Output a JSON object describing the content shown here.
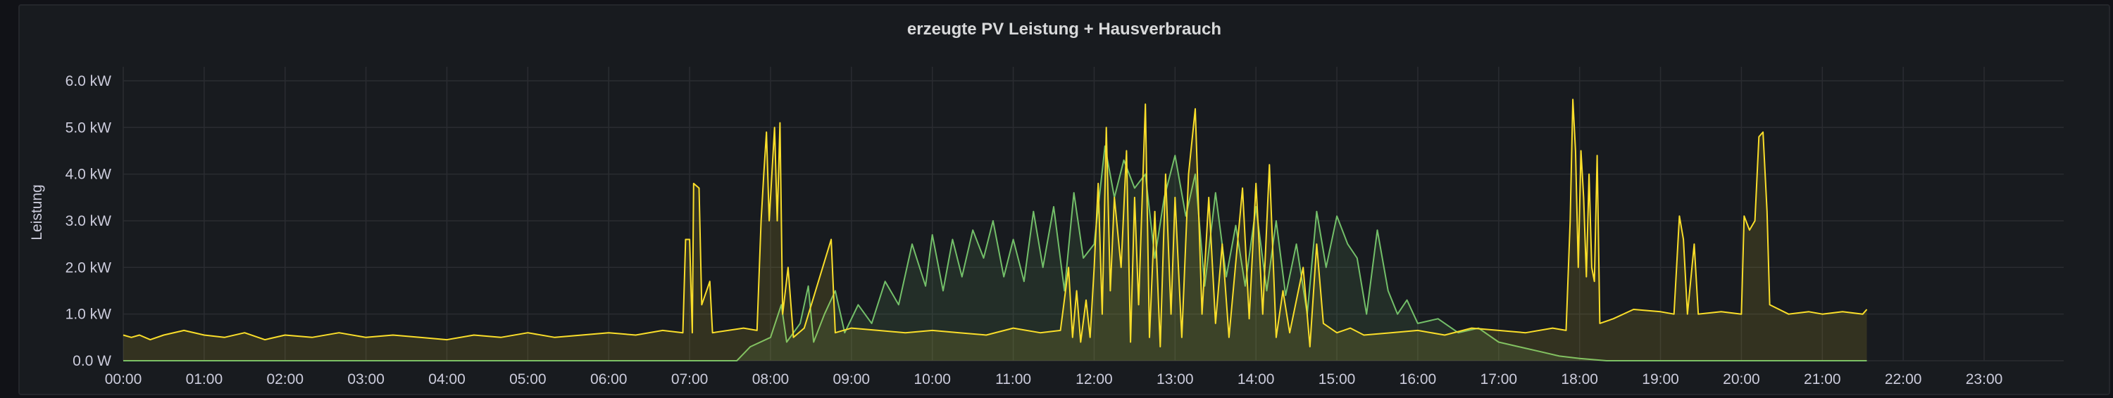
{
  "panel": {
    "title": "erzeugte PV Leistung + Hausverbrauch"
  },
  "chart_data": {
    "type": "area",
    "title": "erzeugte PV Leistung + Hausverbrauch",
    "xlabel": "",
    "ylabel": "Leistung",
    "ylim": [
      0,
      6.3
    ],
    "xlim": [
      "00:00",
      "23:59"
    ],
    "y_ticks": [
      "0.0 W",
      "1.0 kW",
      "2.0 kW",
      "3.0 kW",
      "4.0 kW",
      "5.0 kW",
      "6.0 kW"
    ],
    "x_ticks": [
      "00:00",
      "01:00",
      "02:00",
      "03:00",
      "04:00",
      "05:00",
      "06:00",
      "07:00",
      "08:00",
      "09:00",
      "10:00",
      "11:00",
      "12:00",
      "13:00",
      "14:00",
      "15:00",
      "16:00",
      "17:00",
      "18:00",
      "19:00",
      "20:00",
      "21:00",
      "22:00",
      "23:00"
    ],
    "grid": true,
    "legend": "none",
    "unit": "kW",
    "series": [
      {
        "color": "#fade2a",
        "fill": "rgba(250,222,42,0.12)",
        "points": [
          [
            "00:00",
            0.55
          ],
          [
            "00:06",
            0.5
          ],
          [
            "00:12",
            0.55
          ],
          [
            "00:20",
            0.45
          ],
          [
            "00:30",
            0.55
          ],
          [
            "00:45",
            0.65
          ],
          [
            "01:00",
            0.55
          ],
          [
            "01:15",
            0.5
          ],
          [
            "01:30",
            0.6
          ],
          [
            "01:45",
            0.45
          ],
          [
            "02:00",
            0.55
          ],
          [
            "02:20",
            0.5
          ],
          [
            "02:40",
            0.6
          ],
          [
            "03:00",
            0.5
          ],
          [
            "03:20",
            0.55
          ],
          [
            "03:40",
            0.5
          ],
          [
            "04:00",
            0.45
          ],
          [
            "04:20",
            0.55
          ],
          [
            "04:40",
            0.5
          ],
          [
            "05:00",
            0.6
          ],
          [
            "05:20",
            0.5
          ],
          [
            "05:40",
            0.55
          ],
          [
            "06:00",
            0.6
          ],
          [
            "06:20",
            0.55
          ],
          [
            "06:40",
            0.65
          ],
          [
            "06:55",
            0.6
          ],
          [
            "06:57",
            2.6
          ],
          [
            "07:00",
            2.6
          ],
          [
            "07:02",
            0.6
          ],
          [
            "07:03",
            3.8
          ],
          [
            "07:07",
            3.7
          ],
          [
            "07:09",
            1.2
          ],
          [
            "07:15",
            1.7
          ],
          [
            "07:17",
            0.6
          ],
          [
            "07:40",
            0.7
          ],
          [
            "07:50",
            0.65
          ],
          [
            "07:53",
            3.0
          ],
          [
            "07:55",
            4.0
          ],
          [
            "07:57",
            4.9
          ],
          [
            "07:59",
            3.0
          ],
          [
            "08:03",
            5.0
          ],
          [
            "08:05",
            3.0
          ],
          [
            "08:07",
            5.1
          ],
          [
            "08:09",
            1.0
          ],
          [
            "08:13",
            2.0
          ],
          [
            "08:17",
            0.5
          ],
          [
            "08:25",
            0.7
          ],
          [
            "08:45",
            2.6
          ],
          [
            "08:48",
            0.6
          ],
          [
            "09:00",
            0.7
          ],
          [
            "09:20",
            0.65
          ],
          [
            "09:40",
            0.6
          ],
          [
            "10:00",
            0.65
          ],
          [
            "10:20",
            0.6
          ],
          [
            "10:40",
            0.55
          ],
          [
            "11:00",
            0.7
          ],
          [
            "11:20",
            0.6
          ],
          [
            "11:35",
            0.65
          ],
          [
            "11:41",
            2.0
          ],
          [
            "11:44",
            0.5
          ],
          [
            "11:47",
            1.5
          ],
          [
            "11:50",
            0.4
          ],
          [
            "11:54",
            1.3
          ],
          [
            "11:57",
            0.5
          ],
          [
            "12:00",
            2.0
          ],
          [
            "12:03",
            3.8
          ],
          [
            "12:06",
            1.0
          ],
          [
            "12:09",
            5.0
          ],
          [
            "12:12",
            1.5
          ],
          [
            "12:15",
            3.5
          ],
          [
            "12:20",
            2.0
          ],
          [
            "12:24",
            4.5
          ],
          [
            "12:27",
            0.4
          ],
          [
            "12:30",
            3.5
          ],
          [
            "12:33",
            1.2
          ],
          [
            "12:38",
            5.5
          ],
          [
            "12:41",
            0.5
          ],
          [
            "12:45",
            3.2
          ],
          [
            "12:49",
            0.3
          ],
          [
            "12:53",
            4.0
          ],
          [
            "12:57",
            1.0
          ],
          [
            "13:00",
            3.5
          ],
          [
            "13:05",
            0.5
          ],
          [
            "13:10",
            4.0
          ],
          [
            "13:15",
            5.4
          ],
          [
            "13:20",
            1.0
          ],
          [
            "13:25",
            3.5
          ],
          [
            "13:30",
            0.8
          ],
          [
            "13:35",
            2.5
          ],
          [
            "13:40",
            0.5
          ],
          [
            "13:50",
            3.7
          ],
          [
            "13:55",
            0.9
          ],
          [
            "14:00",
            3.8
          ],
          [
            "14:05",
            1.0
          ],
          [
            "14:10",
            4.2
          ],
          [
            "14:15",
            0.5
          ],
          [
            "14:20",
            1.5
          ],
          [
            "14:25",
            0.6
          ],
          [
            "14:35",
            2.0
          ],
          [
            "14:40",
            0.3
          ],
          [
            "14:45",
            2.5
          ],
          [
            "14:50",
            0.8
          ],
          [
            "15:00",
            0.6
          ],
          [
            "15:10",
            0.7
          ],
          [
            "15:20",
            0.55
          ],
          [
            "15:40",
            0.6
          ],
          [
            "16:00",
            0.65
          ],
          [
            "16:20",
            0.55
          ],
          [
            "16:40",
            0.7
          ],
          [
            "17:00",
            0.65
          ],
          [
            "17:20",
            0.6
          ],
          [
            "17:40",
            0.7
          ],
          [
            "17:50",
            0.65
          ],
          [
            "17:53",
            3.0
          ],
          [
            "17:55",
            5.6
          ],
          [
            "17:57",
            4.5
          ],
          [
            "17:59",
            2.0
          ],
          [
            "18:01",
            4.5
          ],
          [
            "18:03",
            3.5
          ],
          [
            "18:05",
            1.8
          ],
          [
            "18:07",
            4.0
          ],
          [
            "18:09",
            2.0
          ],
          [
            "18:11",
            1.7
          ],
          [
            "18:13",
            4.4
          ],
          [
            "18:15",
            0.8
          ],
          [
            "18:25",
            0.9
          ],
          [
            "18:40",
            1.1
          ],
          [
            "19:00",
            1.05
          ],
          [
            "19:10",
            1.0
          ],
          [
            "19:14",
            3.1
          ],
          [
            "19:17",
            2.6
          ],
          [
            "19:20",
            1.0
          ],
          [
            "19:25",
            2.5
          ],
          [
            "19:28",
            1.0
          ],
          [
            "19:45",
            1.05
          ],
          [
            "20:00",
            1.0
          ],
          [
            "20:02",
            3.1
          ],
          [
            "20:06",
            2.8
          ],
          [
            "20:10",
            3.0
          ],
          [
            "20:13",
            4.8
          ],
          [
            "20:16",
            4.9
          ],
          [
            "20:19",
            3.2
          ],
          [
            "20:21",
            1.2
          ],
          [
            "20:35",
            1.0
          ],
          [
            "20:50",
            1.05
          ],
          [
            "21:00",
            1.0
          ],
          [
            "21:15",
            1.05
          ],
          [
            "21:30",
            1.0
          ],
          [
            "21:33",
            1.1
          ]
        ]
      },
      {
        "color": "#73bf69",
        "fill": "rgba(115,191,105,0.12)",
        "points": [
          [
            "00:00",
            0.0
          ],
          [
            "07:35",
            0.0
          ],
          [
            "07:45",
            0.3
          ],
          [
            "08:00",
            0.5
          ],
          [
            "08:08",
            1.2
          ],
          [
            "08:12",
            0.4
          ],
          [
            "08:22",
            0.8
          ],
          [
            "08:28",
            1.6
          ],
          [
            "08:32",
            0.4
          ],
          [
            "08:40",
            1.0
          ],
          [
            "08:48",
            1.5
          ],
          [
            "08:55",
            0.6
          ],
          [
            "09:05",
            1.2
          ],
          [
            "09:15",
            0.8
          ],
          [
            "09:25",
            1.7
          ],
          [
            "09:35",
            1.2
          ],
          [
            "09:45",
            2.5
          ],
          [
            "09:55",
            1.6
          ],
          [
            "10:00",
            2.7
          ],
          [
            "10:08",
            1.5
          ],
          [
            "10:15",
            2.6
          ],
          [
            "10:22",
            1.8
          ],
          [
            "10:30",
            2.8
          ],
          [
            "10:38",
            2.2
          ],
          [
            "10:45",
            3.0
          ],
          [
            "10:53",
            1.8
          ],
          [
            "11:00",
            2.6
          ],
          [
            "11:08",
            1.7
          ],
          [
            "11:15",
            3.2
          ],
          [
            "11:22",
            2.0
          ],
          [
            "11:30",
            3.3
          ],
          [
            "11:38",
            1.5
          ],
          [
            "11:45",
            3.6
          ],
          [
            "11:52",
            2.2
          ],
          [
            "12:00",
            2.5
          ],
          [
            "12:08",
            4.6
          ],
          [
            "12:15",
            3.5
          ],
          [
            "12:22",
            4.3
          ],
          [
            "12:30",
            3.7
          ],
          [
            "12:38",
            4.0
          ],
          [
            "12:45",
            2.2
          ],
          [
            "12:52",
            3.5
          ],
          [
            "13:00",
            4.4
          ],
          [
            "13:08",
            3.1
          ],
          [
            "13:15",
            4.0
          ],
          [
            "13:22",
            1.6
          ],
          [
            "13:30",
            3.6
          ],
          [
            "13:38",
            1.8
          ],
          [
            "13:45",
            2.9
          ],
          [
            "13:52",
            1.6
          ],
          [
            "14:00",
            3.3
          ],
          [
            "14:08",
            1.5
          ],
          [
            "14:15",
            3.0
          ],
          [
            "14:22",
            1.4
          ],
          [
            "14:30",
            2.5
          ],
          [
            "14:38",
            1.0
          ],
          [
            "14:45",
            3.2
          ],
          [
            "14:52",
            2.0
          ],
          [
            "15:00",
            3.1
          ],
          [
            "15:08",
            2.5
          ],
          [
            "15:15",
            2.2
          ],
          [
            "15:22",
            1.0
          ],
          [
            "15:30",
            2.8
          ],
          [
            "15:38",
            1.5
          ],
          [
            "15:45",
            1.0
          ],
          [
            "15:52",
            1.3
          ],
          [
            "16:00",
            0.8
          ],
          [
            "16:15",
            0.9
          ],
          [
            "16:30",
            0.6
          ],
          [
            "16:45",
            0.7
          ],
          [
            "17:00",
            0.4
          ],
          [
            "17:15",
            0.3
          ],
          [
            "17:30",
            0.2
          ],
          [
            "17:45",
            0.1
          ],
          [
            "18:00",
            0.05
          ],
          [
            "18:20",
            0.0
          ],
          [
            "21:33",
            0.0
          ]
        ]
      }
    ]
  }
}
